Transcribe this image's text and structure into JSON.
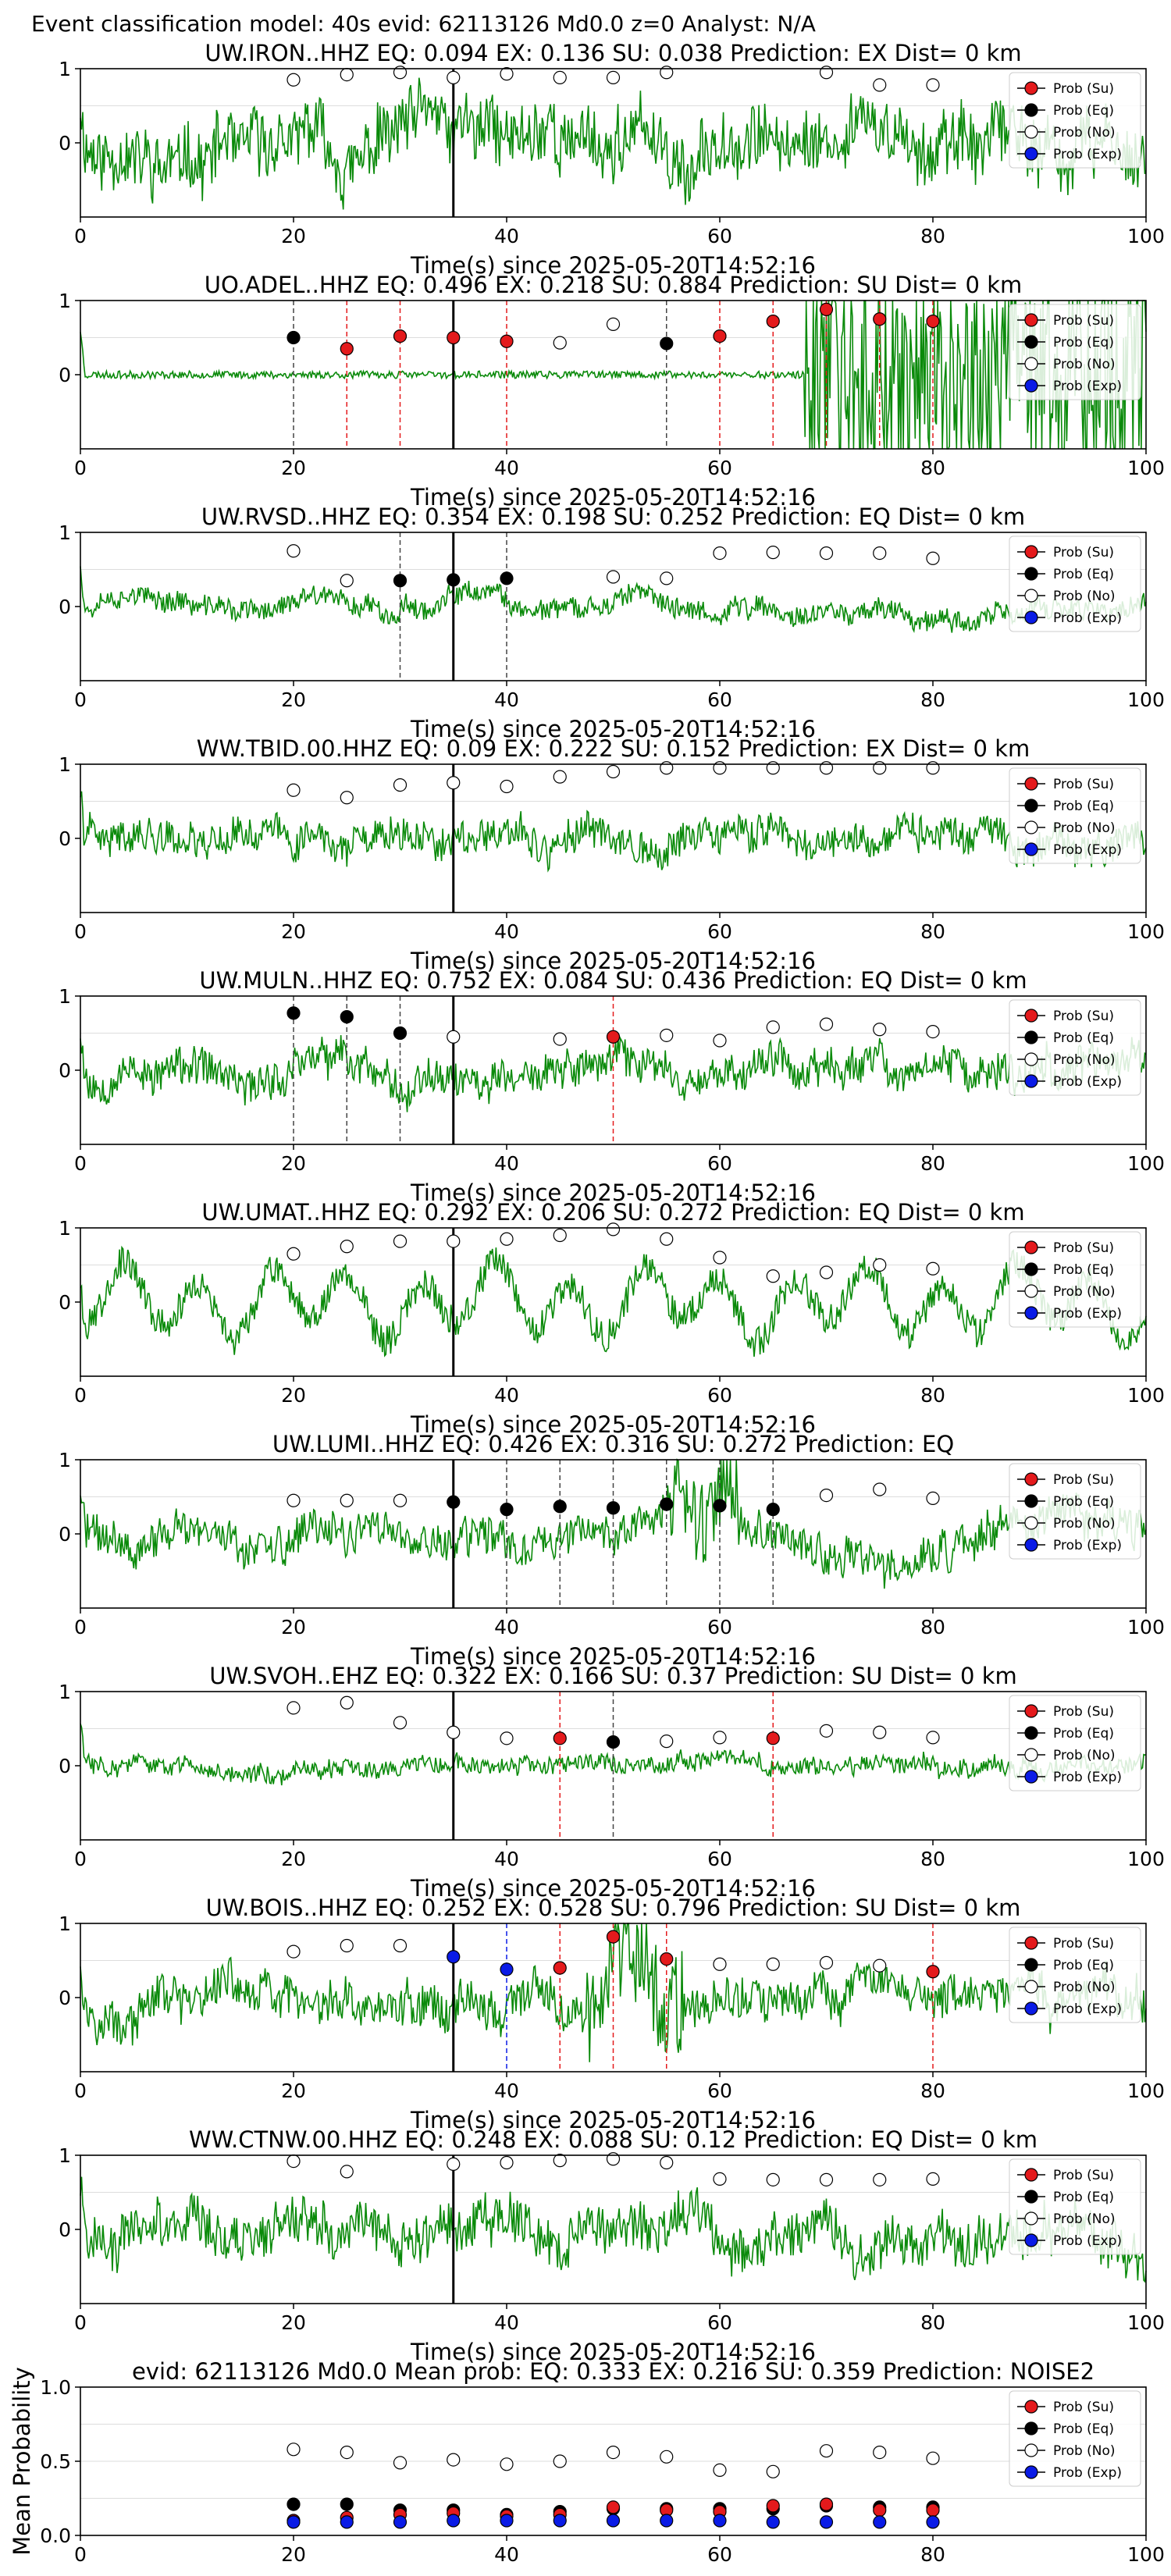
{
  "figure": {
    "suptitle": "Event classification model: 40s evid: 62113126 Md0.0 z=0 Analyst: N/A"
  },
  "legend": {
    "items": [
      {
        "label": "Prob (Su)",
        "color": "#e41a1c",
        "key": "su"
      },
      {
        "label": "Prob (Eq)",
        "color": "#000000",
        "key": "eq"
      },
      {
        "label": "Prob (No)",
        "color": "#ffffff",
        "key": "no"
      },
      {
        "label": "Prob (Exp)",
        "color": "#0a1be6",
        "key": "exp"
      }
    ]
  },
  "colors": {
    "waveform": "#0a8a0a",
    "pick_su": "#e41a1c",
    "pick_eq": "#444444",
    "arrival": "#000000",
    "grid": "#dddddd"
  },
  "chart_data": [
    {
      "type": "line",
      "title": "UW.IRON..HHZ   EQ: 0.094  EX: 0.136  SU: 0.038   Prediction: EX    Dist= 0 km",
      "xlabel": "Time(s) since 2025-05-20T14:52:16",
      "xlim": [
        0,
        100
      ],
      "ylim": [
        -1,
        1
      ],
      "xticks": [
        "0",
        "20",
        "40",
        "60",
        "80",
        "100"
      ],
      "yticks": [
        "1",
        "0"
      ],
      "arrival_time": 35,
      "waveform": {
        "style": "noise",
        "amp": 0.55,
        "seed": 11
      },
      "eq_picks": [],
      "su_picks": [],
      "points": {
        "no": [
          [
            20,
            0.85
          ],
          [
            25,
            0.92
          ],
          [
            30,
            0.95
          ],
          [
            35,
            0.88
          ],
          [
            40,
            0.93
          ],
          [
            45,
            0.88
          ],
          [
            50,
            0.88
          ],
          [
            55,
            0.95
          ],
          [
            70,
            0.95
          ],
          [
            75,
            0.78
          ],
          [
            80,
            0.78
          ]
        ],
        "eq": [],
        "su": [],
        "exp": []
      }
    },
    {
      "type": "line",
      "title": "UO.ADEL..HHZ   EQ: 0.496  EX: 0.218  SU: 0.884   Prediction: SU    Dist= 0 km",
      "xlabel": "Time(s) since 2025-05-20T14:52:16",
      "xlim": [
        0,
        100
      ],
      "ylim": [
        -1,
        1
      ],
      "xticks": [
        "0",
        "20",
        "40",
        "60",
        "80",
        "100"
      ],
      "yticks": [
        "1",
        "0"
      ],
      "arrival_time": 35,
      "waveform": {
        "style": "burst",
        "amp": 0.05,
        "burst_start": 68,
        "burst_amp": 0.8,
        "seed": 23
      },
      "eq_picks": [
        20,
        55
      ],
      "su_picks": [
        25,
        30,
        40,
        60,
        65,
        70,
        75,
        80
      ],
      "points": {
        "eq": [
          [
            20,
            0.5
          ],
          [
            55,
            0.42
          ]
        ],
        "su": [
          [
            25,
            0.35
          ],
          [
            30,
            0.52
          ],
          [
            35,
            0.5
          ],
          [
            40,
            0.45
          ],
          [
            60,
            0.52
          ],
          [
            65,
            0.72
          ],
          [
            70,
            0.88
          ],
          [
            75,
            0.75
          ],
          [
            80,
            0.72
          ]
        ],
        "no": [
          [
            45,
            0.43
          ],
          [
            50,
            0.68
          ]
        ],
        "exp": []
      }
    },
    {
      "type": "line",
      "title": "UW.RVSD..HHZ   EQ: 0.354  EX: 0.198  SU: 0.252   Prediction: EQ    Dist= 0 km",
      "xlabel": "Time(s) since 2025-05-20T14:52:16",
      "xlim": [
        0,
        100
      ],
      "ylim": [
        -1,
        1
      ],
      "xticks": [
        "0",
        "20",
        "40",
        "60",
        "80",
        "100"
      ],
      "yticks": [
        "1",
        "0"
      ],
      "arrival_time": 35,
      "waveform": {
        "style": "noise",
        "amp": 0.18,
        "seed": 37
      },
      "eq_picks": [
        30,
        40
      ],
      "su_picks": [],
      "points": {
        "eq": [
          [
            30,
            0.35
          ],
          [
            35,
            0.36
          ],
          [
            40,
            0.38
          ]
        ],
        "no": [
          [
            20,
            0.75
          ],
          [
            25,
            0.35
          ],
          [
            50,
            0.4
          ],
          [
            55,
            0.38
          ],
          [
            60,
            0.72
          ],
          [
            65,
            0.73
          ],
          [
            70,
            0.72
          ],
          [
            75,
            0.72
          ],
          [
            80,
            0.65
          ]
        ],
        "su": [],
        "exp": []
      }
    },
    {
      "type": "line",
      "title": "WW.TBID.00.HHZ   EQ: 0.09  EX: 0.222  SU: 0.152   Prediction: EX    Dist= 0 km",
      "xlabel": "Time(s) since 2025-05-20T14:52:16",
      "xlim": [
        0,
        100
      ],
      "ylim": [
        -1,
        1
      ],
      "xticks": [
        "0",
        "20",
        "40",
        "60",
        "80",
        "100"
      ],
      "yticks": [
        "1",
        "0"
      ],
      "arrival_time": 35,
      "waveform": {
        "style": "noise",
        "amp": 0.28,
        "seed": 41
      },
      "eq_picks": [],
      "su_picks": [],
      "points": {
        "no": [
          [
            20,
            0.65
          ],
          [
            25,
            0.55
          ],
          [
            30,
            0.72
          ],
          [
            35,
            0.75
          ],
          [
            40,
            0.7
          ],
          [
            45,
            0.83
          ],
          [
            50,
            0.9
          ],
          [
            55,
            0.95
          ],
          [
            60,
            0.95
          ],
          [
            65,
            0.95
          ],
          [
            70,
            0.95
          ],
          [
            75,
            0.95
          ],
          [
            80,
            0.95
          ]
        ],
        "eq": [],
        "su": [],
        "exp": []
      }
    },
    {
      "type": "line",
      "title": "UW.MULN..HHZ   EQ: 0.752  EX: 0.084  SU: 0.436   Prediction: EQ    Dist= 0 km",
      "xlabel": "Time(s) since 2025-05-20T14:52:16",
      "xlim": [
        0,
        100
      ],
      "ylim": [
        -1,
        1
      ],
      "xticks": [
        "0",
        "20",
        "40",
        "60",
        "80",
        "100"
      ],
      "yticks": [
        "1",
        "0"
      ],
      "arrival_time": 35,
      "waveform": {
        "style": "noise",
        "amp": 0.32,
        "seed": 53
      },
      "eq_picks": [
        20,
        25,
        30
      ],
      "su_picks": [
        50
      ],
      "points": {
        "eq": [
          [
            20,
            0.77
          ],
          [
            25,
            0.72
          ],
          [
            30,
            0.5
          ]
        ],
        "su": [
          [
            50,
            0.45
          ]
        ],
        "no": [
          [
            35,
            0.45
          ],
          [
            45,
            0.42
          ],
          [
            55,
            0.47
          ],
          [
            60,
            0.4
          ],
          [
            65,
            0.58
          ],
          [
            70,
            0.62
          ],
          [
            75,
            0.55
          ],
          [
            80,
            0.52
          ]
        ],
        "exp": []
      }
    },
    {
      "type": "line",
      "title": "UW.UMAT..HHZ   EQ: 0.292  EX: 0.206  SU: 0.272   Prediction: EQ    Dist= 0 km",
      "xlabel": "Time(s) since 2025-05-20T14:52:16",
      "xlim": [
        0,
        100
      ],
      "ylim": [
        -1,
        1
      ],
      "xticks": [
        "0",
        "20",
        "40",
        "60",
        "80",
        "100"
      ],
      "yticks": [
        "1",
        "0"
      ],
      "arrival_time": 35,
      "waveform": {
        "style": "swell",
        "amp": 0.6,
        "seed": 67
      },
      "eq_picks": [],
      "su_picks": [],
      "points": {
        "no": [
          [
            20,
            0.65
          ],
          [
            25,
            0.75
          ],
          [
            30,
            0.82
          ],
          [
            35,
            0.82
          ],
          [
            40,
            0.85
          ],
          [
            45,
            0.9
          ],
          [
            50,
            0.98
          ],
          [
            55,
            0.85
          ],
          [
            60,
            0.6
          ],
          [
            65,
            0.35
          ],
          [
            70,
            0.4
          ],
          [
            75,
            0.5
          ],
          [
            80,
            0.45
          ]
        ],
        "eq": [],
        "su": [],
        "exp": []
      }
    },
    {
      "type": "line",
      "title": "UW.LUMI..HHZ   EQ: 0.426  EX: 0.316  SU: 0.272   Prediction: EQ",
      "xlabel": "Time(s) since 2025-05-20T14:52:16",
      "xlim": [
        0,
        100
      ],
      "ylim": [
        -1,
        1
      ],
      "xticks": [
        "0",
        "20",
        "40",
        "60",
        "80",
        "100"
      ],
      "yticks": [
        "1",
        "0"
      ],
      "arrival_time": 35,
      "waveform": {
        "style": "noise",
        "amp": 0.32,
        "burst_start": 55,
        "burst_end": 62,
        "burst_amp": 0.85,
        "seed": 71
      },
      "eq_picks": [
        40,
        45,
        50,
        55,
        60,
        65
      ],
      "su_picks": [],
      "points": {
        "eq": [
          [
            35,
            0.43
          ],
          [
            40,
            0.33
          ],
          [
            45,
            0.37
          ],
          [
            50,
            0.35
          ],
          [
            55,
            0.4
          ],
          [
            60,
            0.38
          ],
          [
            65,
            0.33
          ]
        ],
        "no": [
          [
            20,
            0.45
          ],
          [
            25,
            0.45
          ],
          [
            30,
            0.45
          ],
          [
            70,
            0.52
          ],
          [
            75,
            0.6
          ],
          [
            80,
            0.48
          ]
        ],
        "su": [],
        "exp": []
      }
    },
    {
      "type": "line",
      "title": "UW.SVOH..EHZ   EQ: 0.322  EX: 0.166  SU: 0.37   Prediction: SU    Dist= 0 km",
      "xlabel": "Time(s) since 2025-05-20T14:52:16",
      "xlim": [
        0,
        100
      ],
      "ylim": [
        -1,
        1
      ],
      "xticks": [
        "0",
        "20",
        "40",
        "60",
        "80",
        "100"
      ],
      "yticks": [
        "1",
        "0"
      ],
      "arrival_time": 35,
      "waveform": {
        "style": "noise",
        "amp": 0.15,
        "seed": 83
      },
      "eq_picks": [
        50
      ],
      "su_picks": [
        45,
        65
      ],
      "points": {
        "su": [
          [
            45,
            0.37
          ],
          [
            65,
            0.37
          ]
        ],
        "eq": [
          [
            50,
            0.32
          ]
        ],
        "no": [
          [
            20,
            0.78
          ],
          [
            25,
            0.85
          ],
          [
            30,
            0.58
          ],
          [
            35,
            0.45
          ],
          [
            40,
            0.37
          ],
          [
            55,
            0.33
          ],
          [
            60,
            0.38
          ],
          [
            70,
            0.47
          ],
          [
            75,
            0.45
          ],
          [
            80,
            0.38
          ]
        ],
        "exp": []
      }
    },
    {
      "type": "line",
      "title": "UW.BOIS..HHZ   EQ: 0.252  EX: 0.528  SU: 0.796   Prediction: SU    Dist= 0 km",
      "xlabel": "Time(s) since 2025-05-20T14:52:16",
      "xlim": [
        0,
        100
      ],
      "ylim": [
        -1,
        1
      ],
      "xticks": [
        "0",
        "20",
        "40",
        "60",
        "80",
        "100"
      ],
      "yticks": [
        "1",
        "0"
      ],
      "arrival_time": 35,
      "waveform": {
        "style": "noise",
        "amp": 0.35,
        "burst_start": 47,
        "burst_end": 57,
        "burst_amp": 0.8,
        "seed": 97
      },
      "eq_picks": [],
      "su_picks": [
        45,
        50,
        55,
        80
      ],
      "exp_picks": [
        40
      ],
      "points": {
        "exp": [
          [
            35,
            0.55
          ],
          [
            40,
            0.38
          ]
        ],
        "su": [
          [
            45,
            0.4
          ],
          [
            50,
            0.82
          ],
          [
            55,
            0.52
          ],
          [
            80,
            0.35
          ]
        ],
        "no": [
          [
            20,
            0.62
          ],
          [
            25,
            0.7
          ],
          [
            30,
            0.7
          ],
          [
            60,
            0.45
          ],
          [
            65,
            0.45
          ],
          [
            70,
            0.47
          ],
          [
            75,
            0.43
          ]
        ],
        "eq": []
      }
    },
    {
      "type": "line",
      "title": "WW.CTNW.00.HHZ   EQ: 0.248  EX: 0.088  SU: 0.12   Prediction: EQ    Dist= 0 km",
      "xlabel": "Time(s) since 2025-05-20T14:52:16",
      "xlim": [
        0,
        100
      ],
      "ylim": [
        -1,
        1
      ],
      "xticks": [
        "0",
        "20",
        "40",
        "60",
        "80",
        "100"
      ],
      "yticks": [
        "1",
        "0"
      ],
      "arrival_time": 35,
      "waveform": {
        "style": "noise",
        "amp": 0.4,
        "seed": 101
      },
      "eq_picks": [],
      "su_picks": [],
      "points": {
        "no": [
          [
            20,
            0.92
          ],
          [
            25,
            0.78
          ],
          [
            35,
            0.88
          ],
          [
            40,
            0.9
          ],
          [
            45,
            0.93
          ],
          [
            50,
            0.95
          ],
          [
            55,
            0.9
          ],
          [
            60,
            0.68
          ],
          [
            65,
            0.67
          ],
          [
            70,
            0.67
          ],
          [
            75,
            0.67
          ],
          [
            80,
            0.68
          ]
        ],
        "eq": [],
        "su": [],
        "exp": []
      }
    },
    {
      "type": "scatter",
      "title": "evid: 62113126  Md0.0   Mean prob:   EQ: 0.333  EX: 0.216  SU: 0.359   Prediction: NOISE2",
      "xlabel": "",
      "ylabel": "Mean Probability",
      "xlim": [
        0,
        100
      ],
      "ylim": [
        0,
        1
      ],
      "xticks": [
        "0",
        "20",
        "40",
        "60",
        "80",
        "100"
      ],
      "yticks": [
        "1.0",
        "0.5",
        "0.0"
      ],
      "points": {
        "no": [
          [
            20,
            0.58
          ],
          [
            25,
            0.56
          ],
          [
            30,
            0.49
          ],
          [
            35,
            0.51
          ],
          [
            40,
            0.48
          ],
          [
            45,
            0.5
          ],
          [
            50,
            0.56
          ],
          [
            55,
            0.53
          ],
          [
            60,
            0.44
          ],
          [
            65,
            0.43
          ],
          [
            70,
            0.57
          ],
          [
            75,
            0.56
          ],
          [
            80,
            0.52
          ]
        ],
        "eq": [
          [
            20,
            0.21
          ],
          [
            25,
            0.21
          ],
          [
            30,
            0.17
          ],
          [
            35,
            0.17
          ],
          [
            40,
            0.14
          ],
          [
            45,
            0.16
          ],
          [
            50,
            0.18
          ],
          [
            55,
            0.18
          ],
          [
            60,
            0.18
          ],
          [
            65,
            0.18
          ],
          [
            70,
            0.2
          ],
          [
            75,
            0.19
          ],
          [
            80,
            0.19
          ]
        ],
        "su": [
          [
            20,
            0.1
          ],
          [
            25,
            0.12
          ],
          [
            30,
            0.14
          ],
          [
            35,
            0.15
          ],
          [
            40,
            0.13
          ],
          [
            45,
            0.14
          ],
          [
            50,
            0.19
          ],
          [
            55,
            0.17
          ],
          [
            60,
            0.16
          ],
          [
            65,
            0.2
          ],
          [
            70,
            0.21
          ],
          [
            75,
            0.17
          ],
          [
            80,
            0.17
          ]
        ],
        "exp": [
          [
            20,
            0.09
          ],
          [
            25,
            0.09
          ],
          [
            30,
            0.09
          ],
          [
            35,
            0.1
          ],
          [
            40,
            0.1
          ],
          [
            45,
            0.1
          ],
          [
            50,
            0.1
          ],
          [
            55,
            0.1
          ],
          [
            60,
            0.1
          ],
          [
            65,
            0.09
          ],
          [
            70,
            0.09
          ],
          [
            75,
            0.09
          ],
          [
            80,
            0.09
          ]
        ]
      }
    }
  ]
}
